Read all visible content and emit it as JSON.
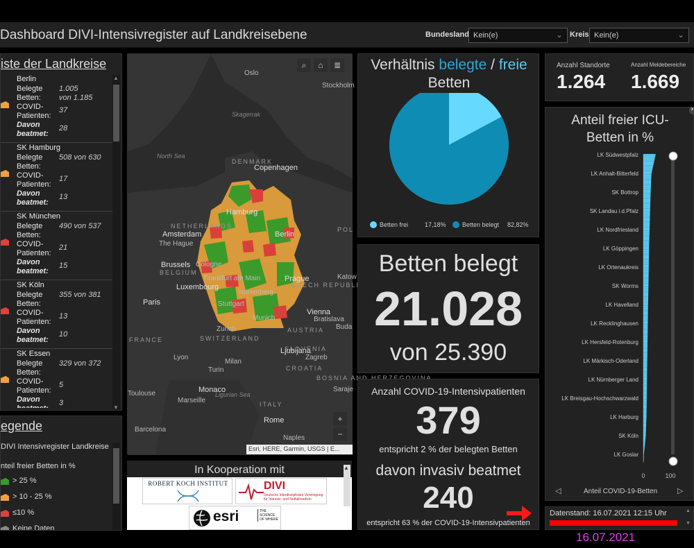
{
  "header": {
    "title": "Dashboard DIVI-Intensivregister auf Landkreisebene",
    "bundesland_label": "Bundesland",
    "bundesland_value": "Kein(e)",
    "kreis_label": "Kreis",
    "kreis_value": "Kein(e)"
  },
  "list": {
    "title": "iste der Landkreise",
    "items": [
      {
        "city": "Berlin",
        "l1": "Belegte",
        "l2": "Betten:",
        "v1": "1.005",
        "v1b": "von 1.185",
        "l3": "COVID-",
        "l4": "Patienten:",
        "v2": "37",
        "l5": "Davon",
        "l6": "beatmet:",
        "v3": "28",
        "color": "#f0a040"
      },
      {
        "city": "SK Hamburg",
        "l1": "Belegte",
        "l2": "Betten:",
        "v1": "508 von 630",
        "l3": "COVID-",
        "l4": "Patienten:",
        "v2": "17",
        "l5": "Davon",
        "l6": "beatmet:",
        "v3": "13",
        "color": "#f0a040"
      },
      {
        "city": "SK München",
        "l1": "Belegte",
        "l2": "Betten:",
        "v1": "490 von 537",
        "l3": "COVID-",
        "l4": "Patienten:",
        "v2": "21",
        "l5": "Davon",
        "l6": "beatmet:",
        "v3": "15",
        "color": "#e0403a"
      },
      {
        "city": "SK Köln",
        "l1": "Belegte",
        "l2": "Betten:",
        "v1": "355 von 381",
        "l3": "COVID-",
        "l4": "Patienten:",
        "v2": "13",
        "l5": "Davon",
        "l6": "beatmet:",
        "v3": "10",
        "color": "#e0403a"
      },
      {
        "city": "SK Essen",
        "l1": "Belegte",
        "l2": "Betten:",
        "v1": "329 von 372",
        "l3": "COVID-",
        "l4": "Patienten:",
        "v2": "5",
        "l5": "Davon",
        "l6": "beatmet:",
        "v3": "3",
        "color": "#f0a040"
      }
    ]
  },
  "legend": {
    "title": "egende",
    "layer": "DIVI Intensivregister Landkreise",
    "sub": "nteil freier Betten in %",
    "items": [
      {
        "label": "> 25 %",
        "color": "#3a9a2a"
      },
      {
        "label": "> 10 - 25 %",
        "color": "#f0a040"
      },
      {
        "label": "≤10 %",
        "color": "#e0403a"
      },
      {
        "label": "Keine Daten",
        "color": "#888888"
      }
    ]
  },
  "map": {
    "attribution": "Esri, HERE, Garmin, USGS | E...",
    "labels": [
      {
        "t": "Oslo"
      },
      {
        "t": "Stockholm"
      },
      {
        "t": "Skagerrak"
      },
      {
        "t": "North Sea"
      },
      {
        "t": "DENMARK"
      },
      {
        "t": "Copenhagen"
      },
      {
        "t": "Hamburg"
      },
      {
        "t": "NETHERLANDS"
      },
      {
        "t": "Amsterdam"
      },
      {
        "t": "The Hague"
      },
      {
        "t": "Berlin"
      },
      {
        "t": "POL"
      },
      {
        "t": "Brussels"
      },
      {
        "t": "BELGIUM"
      },
      {
        "t": "Cologne"
      },
      {
        "t": "Luxembourg"
      },
      {
        "t": "Frankfurt am Main"
      },
      {
        "t": "Prague"
      },
      {
        "t": "CZECH REPUBLIC"
      },
      {
        "t": "Paris"
      },
      {
        "t": "Nuremberg"
      },
      {
        "t": "Stuttgart"
      },
      {
        "t": "Munich"
      },
      {
        "t": "Vienna"
      },
      {
        "t": "Bratislava"
      },
      {
        "t": "Buda"
      },
      {
        "t": "Katow"
      },
      {
        "t": "Zurich"
      },
      {
        "t": "AUSTRIA"
      },
      {
        "t": "FRANCE"
      },
      {
        "t": "SWITZERLAND"
      },
      {
        "t": "Lyon"
      },
      {
        "t": "Milan"
      },
      {
        "t": "Ljubljana"
      },
      {
        "t": "SLOVENIA"
      },
      {
        "t": "Zagreb"
      },
      {
        "t": "CROATIA"
      },
      {
        "t": "Turin"
      },
      {
        "t": "BOSNIA AND HERZEGOVINA"
      },
      {
        "t": "Saraje"
      },
      {
        "t": "Monaco"
      },
      {
        "t": "Marseille"
      },
      {
        "t": "Ligurian Sea"
      },
      {
        "t": "Toulouse"
      },
      {
        "t": "ITALY"
      },
      {
        "t": "Rome"
      },
      {
        "t": "Barcelona"
      },
      {
        "t": "Naples"
      }
    ]
  },
  "coop": {
    "title": "In Kooperation mit",
    "rki": "ROBERT KOCH INSTITUT",
    "divi": "DIVI",
    "divi_sub": "Deutsche Interdisziplinäre Vereinigung für Intensiv- und Notfallmedizin",
    "esri": "esri",
    "esri_sub": "THE SCIENCE OF WHERE"
  },
  "pie": {
    "title_a": "Verhältnis ",
    "title_b": "belegte",
    "title_c": " / ",
    "title_d": "freie",
    "title_e": "Betten",
    "free_label": "Betten frei",
    "free_pct": "17,18%",
    "used_label": "Betten belegt",
    "used_pct": "82,82%",
    "free_value": 17.18,
    "used_value": 82.82,
    "free_color": "#66d9ff",
    "used_color": "#0f8cb4"
  },
  "beds": {
    "title": "Betten belegt",
    "value": "21.028",
    "total": "von 25.390"
  },
  "covid": {
    "title": "Anzahl COVID-19-Intensivpatienten",
    "value": "379",
    "sub": "entspricht 2 % der belegten Betten",
    "title2": "davon invasiv beatmet",
    "value2": "240",
    "sub2": "entspricht 63 % der COVID-19-Intensivpatienten"
  },
  "stats": {
    "standorte_label": "Anzahl Standorte",
    "standorte": "1.264",
    "melde_label": "Anzahl Meldebereiche",
    "melde": "1.669"
  },
  "chart_data": {
    "type": "bar",
    "title": "Anteil freier ICU-Betten in %",
    "xlabel": "Anteil COVID-19-Betten",
    "xticks": [
      "0",
      "100"
    ],
    "xlim": [
      0,
      100
    ],
    "bar_color": "#5bc8f0",
    "categories": [
      "LK Südwestpfalz",
      "LK Anhalt-Bitterfeld",
      "SK Bottrop",
      "SK Landau i.d.Pfalz",
      "LK Nordfriesland",
      "LK Göppingen",
      "LK Ortenaukreis",
      "SK Worms",
      "LK Havelland",
      "LK Recklinghausen",
      "LK Hersfeld-Rotenburg",
      "LK Märkisch-Oderland",
      "LK Nürnberger Land",
      "LK Breisgau-Hochschwarzwald",
      "LK Harburg",
      "SK Köln",
      "LK Goslar"
    ],
    "values": [
      45,
      30,
      27,
      25,
      23,
      21,
      20,
      19,
      17.5,
      16.5,
      15.5,
      14.5,
      13.5,
      12.5,
      11.5,
      9,
      2
    ]
  },
  "footer": {
    "stand": "Datenstand: 16.07.2021 12:15 Uhr",
    "date": "16.07.2021",
    "date_color": "#e040e0",
    "bar_color": "#ff0000"
  }
}
